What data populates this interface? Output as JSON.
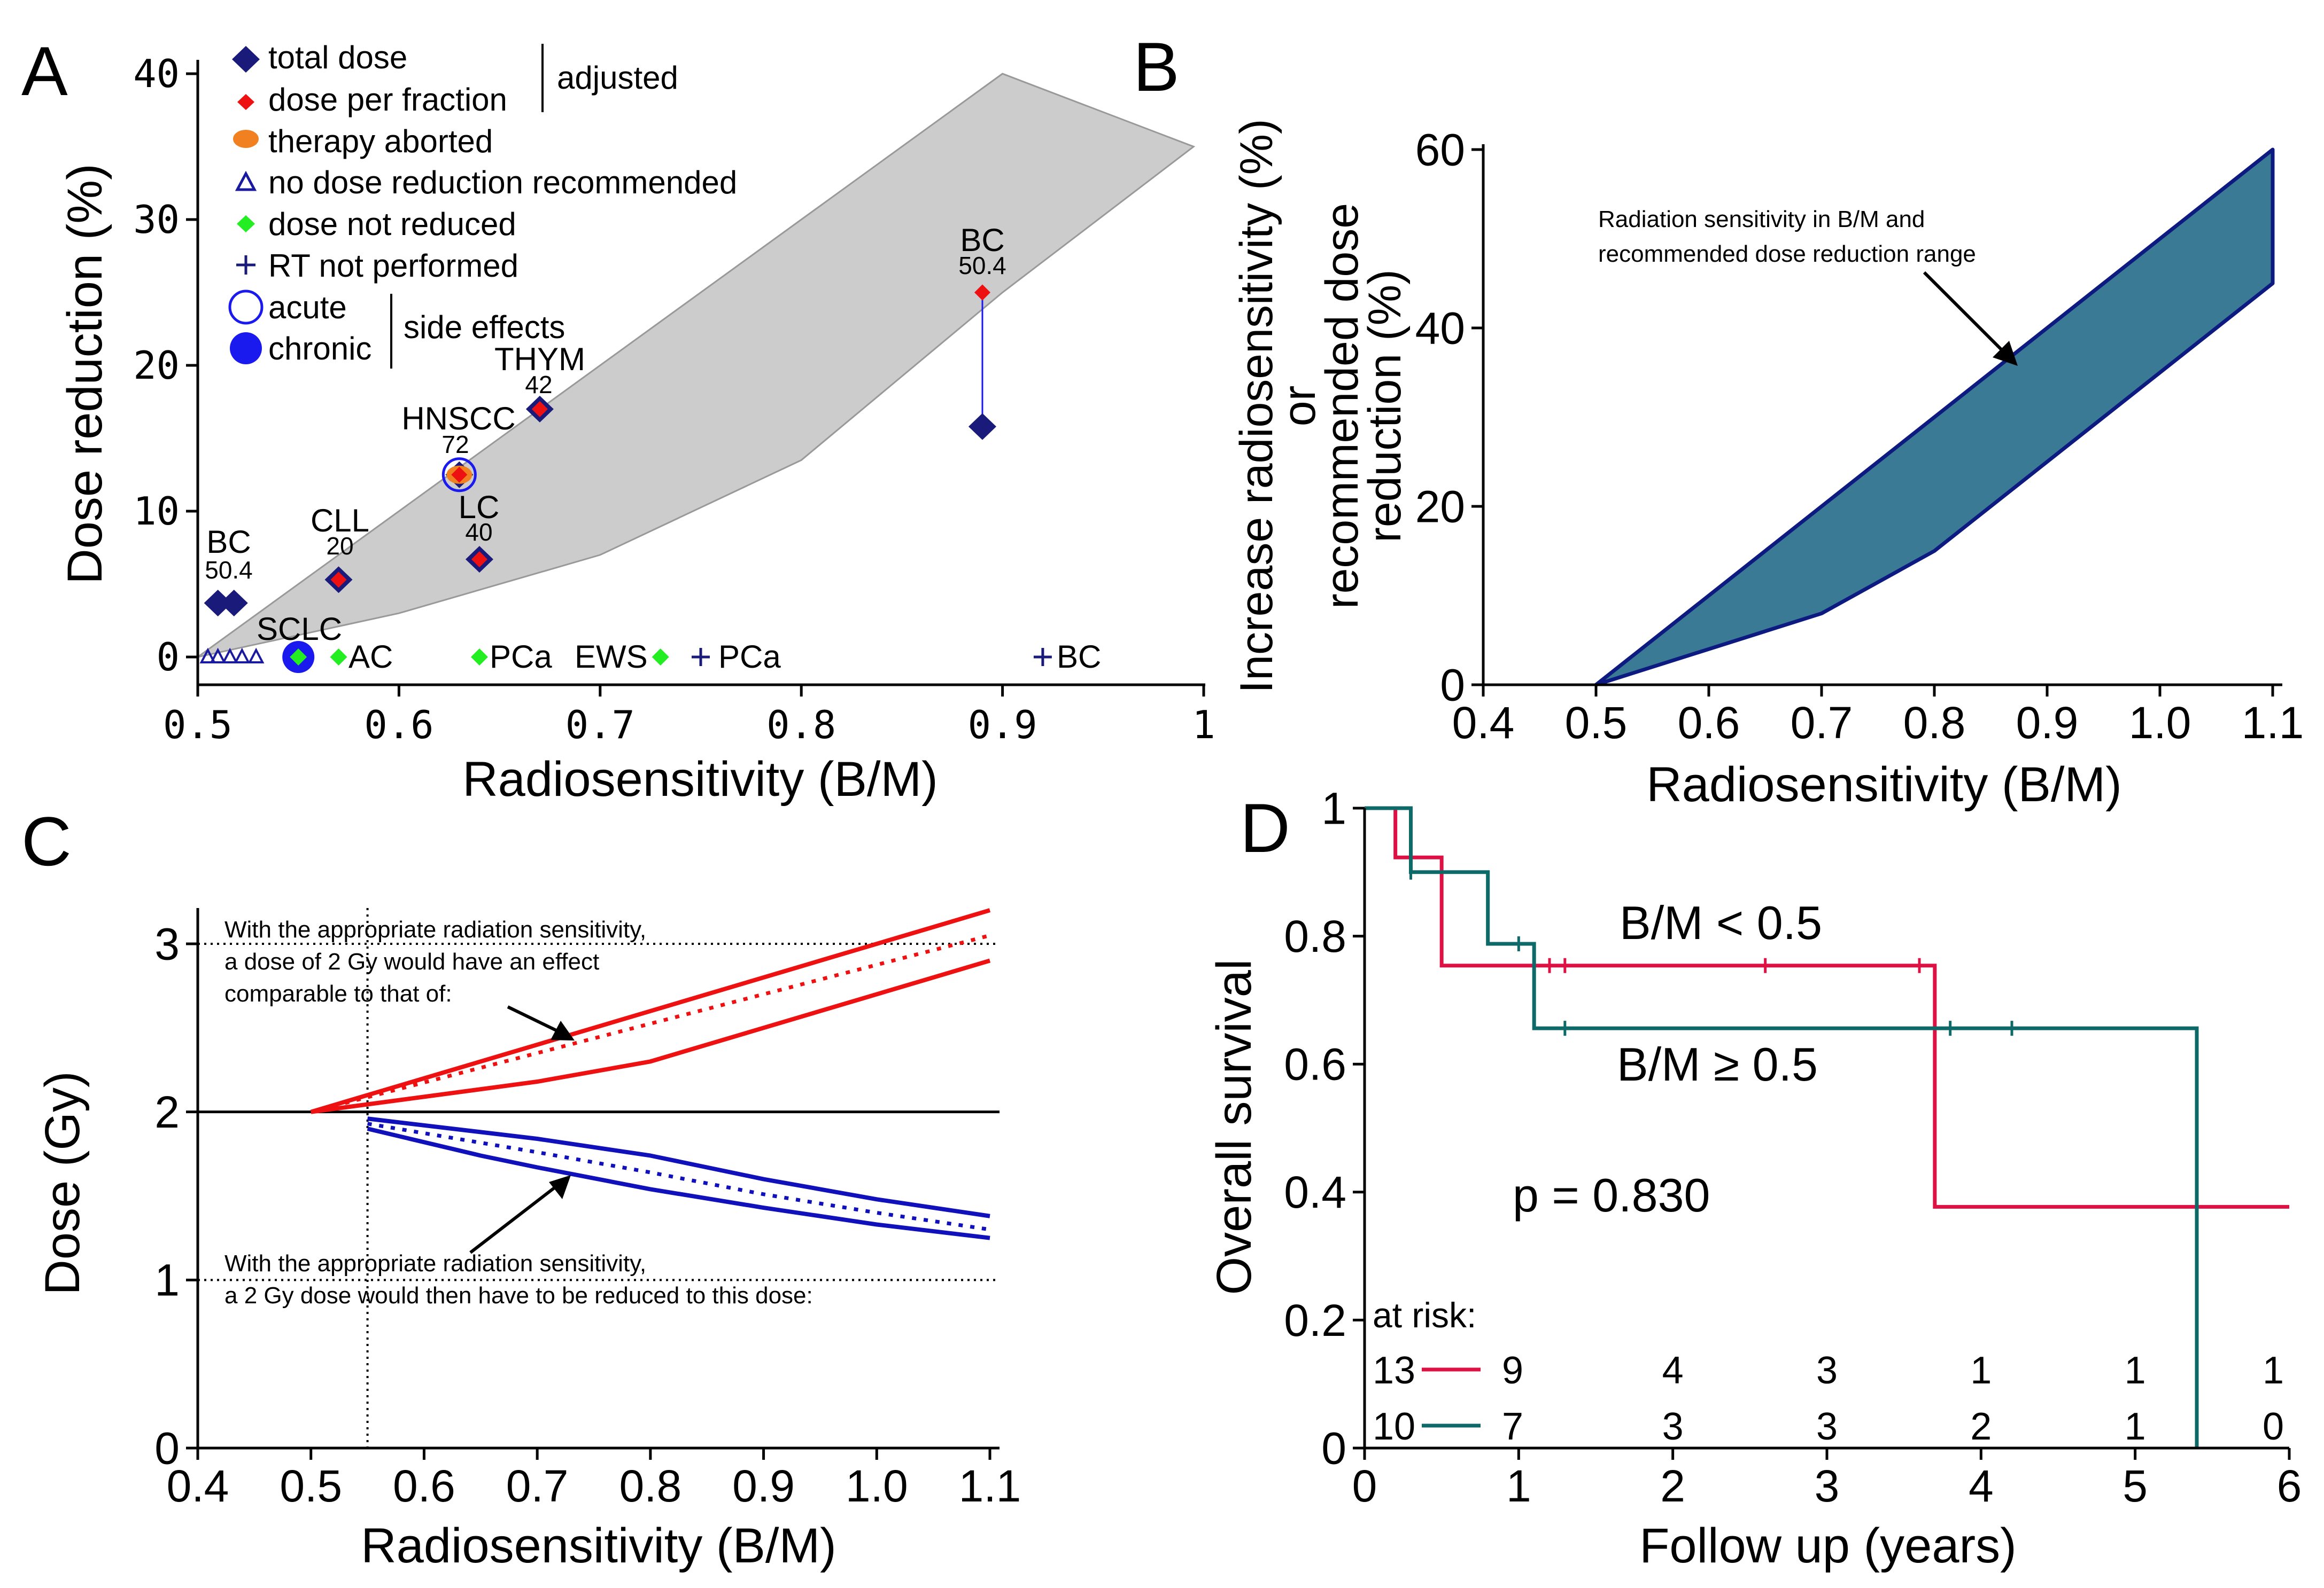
{
  "panels": {
    "A": {
      "letter": "A",
      "chart_data": {
        "type": "scatter",
        "xlabel": "Radiosensitivity (B/M)",
        "ylabel": "Dose reduction (%)",
        "xlim": [
          0.5,
          1.0
        ],
        "ylim": [
          0,
          40
        ],
        "xtick_labels": [
          "0.5",
          "0.6",
          "0.7",
          "0.8",
          "0.9",
          "1"
        ],
        "xticks": [
          0.5,
          0.6,
          0.7,
          0.8,
          0.9,
          1.0
        ],
        "ytick_labels": [
          "0",
          "10",
          "20",
          "30",
          "40"
        ],
        "yticks": [
          0,
          10,
          20,
          30,
          40
        ],
        "band_upper": [
          [
            0.5,
            0
          ],
          [
            0.9,
            40
          ],
          [
            0.995,
            35
          ]
        ],
        "band_lower": [
          [
            0.5,
            0
          ],
          [
            0.6,
            3
          ],
          [
            0.7,
            7
          ],
          [
            0.8,
            13.5
          ],
          [
            0.9,
            25
          ],
          [
            0.995,
            35
          ]
        ],
        "legend": {
          "items": [
            {
              "label": "total dose",
              "marker": "diamond-navy"
            },
            {
              "label": "dose per fraction",
              "marker": "diamond-red"
            },
            {
              "label": "therapy aborted",
              "marker": "ellipse-orange"
            },
            {
              "label": "no dose reduction recommended",
              "marker": "triangle-open"
            },
            {
              "label": "dose not reduced",
              "marker": "diamond-green"
            },
            {
              "label": "RT not performed",
              "marker": "plus-navy"
            },
            {
              "label": "acute",
              "marker": "circle-open"
            },
            {
              "label": "chronic",
              "marker": "circle-filled"
            }
          ],
          "group_adjusted": "adjusted",
          "group_side_effects": "side effects"
        },
        "points": {
          "total_dose": [
            [
              0.51,
              3.7
            ],
            [
              0.518,
              3.7
            ],
            [
              0.57,
              5.3
            ],
            [
              0.63,
              12.5
            ],
            [
              0.64,
              6.7
            ],
            [
              0.67,
              17
            ],
            [
              0.89,
              15.8
            ]
          ],
          "dose_per_fraction": [
            [
              0.57,
              5.3
            ],
            [
              0.63,
              12.5
            ],
            [
              0.64,
              6.7
            ],
            [
              0.67,
              17
            ],
            [
              0.89,
              25
            ]
          ],
          "therapy_aborted": [
            [
              0.63,
              12.5
            ]
          ],
          "no_dose_reduction": [
            [
              0.505,
              0
            ],
            [
              0.51,
              0
            ],
            [
              0.516,
              0
            ],
            [
              0.522,
              0
            ],
            [
              0.529,
              0
            ]
          ],
          "dose_not_reduced": [
            [
              0.55,
              0
            ],
            [
              0.57,
              0
            ],
            [
              0.64,
              0
            ],
            [
              0.73,
              0
            ]
          ],
          "rt_not_performed": [
            [
              0.75,
              0
            ],
            [
              0.92,
              0
            ]
          ],
          "acute": [
            [
              0.63,
              12.5
            ]
          ],
          "chronic": [
            [
              0.55,
              0
            ]
          ]
        },
        "annotations": [
          {
            "name": "BC",
            "dose": "50.4",
            "x": 0.515,
            "y": 3.7
          },
          {
            "name": "CLL",
            "dose": "20",
            "x": 0.57,
            "y": 5.3
          },
          {
            "name": "HNSCC",
            "dose": "72",
            "x": 0.63,
            "y": 12.5
          },
          {
            "name": "LC",
            "dose": "40",
            "x": 0.64,
            "y": 6.7
          },
          {
            "name": "THYM",
            "dose": "42",
            "x": 0.67,
            "y": 17
          },
          {
            "name": "BC",
            "dose": "50.4",
            "x": 0.89,
            "y": 25
          }
        ],
        "baseline_labels": [
          "SCLC",
          "AC",
          "PCa",
          "EWS",
          "PCa",
          "BC"
        ]
      }
    },
    "B": {
      "letter": "B",
      "chart_data": {
        "type": "area",
        "xlabel": "Radiosensitivity (B/M)",
        "ylabel_lines": [
          "Increase radiosensitivity (%)",
          "or",
          "recommended dose",
          "reduction (%)"
        ],
        "xlim": [
          0.4,
          1.1
        ],
        "ylim": [
          0,
          60
        ],
        "xtick_labels": [
          "0.4",
          "0.5",
          "0.6",
          "0.7",
          "0.8",
          "0.9",
          "1.0",
          "1.1"
        ],
        "xticks": [
          0.4,
          0.5,
          0.6,
          0.7,
          0.8,
          0.9,
          1.0,
          1.1
        ],
        "ytick_labels": [
          "0",
          "20",
          "40",
          "60"
        ],
        "yticks": [
          0,
          20,
          40,
          60
        ],
        "upper": [
          [
            0.5,
            0
          ],
          [
            1.1,
            60
          ]
        ],
        "lower": [
          [
            0.5,
            0
          ],
          [
            0.7,
            8
          ],
          [
            0.8,
            15
          ],
          [
            1.1,
            45
          ]
        ],
        "fill_color": "#3a7a95",
        "edge_color": "#0d1a80",
        "annotation_lines": [
          "Radiation sensitivity in B/M and",
          "recommended dose reduction range"
        ]
      }
    },
    "C": {
      "letter": "C",
      "chart_data": {
        "type": "line",
        "xlabel": "Radiosensitivity (B/M)",
        "ylabel": "Dose (Gy)",
        "xlim": [
          0.4,
          1.1
        ],
        "ylim": [
          0,
          3.2
        ],
        "xtick_labels": [
          "0.4",
          "0.5",
          "0.6",
          "0.7",
          "0.8",
          "0.9",
          "1.0",
          "1.1"
        ],
        "xticks": [
          0.4,
          0.5,
          0.6,
          0.7,
          0.8,
          0.9,
          1.0,
          1.1
        ],
        "ytick_labels": [
          "0",
          "1",
          "2",
          "3"
        ],
        "yticks": [
          0,
          1,
          2,
          3
        ],
        "reference_lines": {
          "y_solid": 2,
          "y_dotted": [
            1,
            3
          ],
          "x_dotted": 0.55
        },
        "series": [
          {
            "name": "red upper",
            "color": "#ee1111",
            "style": "solid",
            "points": [
              [
                0.5,
                2.0
              ],
              [
                1.1,
                3.2
              ]
            ]
          },
          {
            "name": "red mid",
            "color": "#ee1111",
            "style": "dotted",
            "points": [
              [
                0.5,
                2.0
              ],
              [
                1.1,
                3.05
              ]
            ]
          },
          {
            "name": "red lower",
            "color": "#ee1111",
            "style": "solid",
            "points": [
              [
                0.5,
                2.0
              ],
              [
                0.7,
                2.18
              ],
              [
                0.8,
                2.3
              ],
              [
                1.1,
                2.9
              ]
            ]
          },
          {
            "name": "blue upper",
            "color": "#1111bb",
            "style": "solid",
            "points": [
              [
                0.55,
                1.96
              ],
              [
                0.7,
                1.84
              ],
              [
                0.8,
                1.74
              ],
              [
                0.9,
                1.6
              ],
              [
                1.0,
                1.48
              ],
              [
                1.1,
                1.38
              ]
            ]
          },
          {
            "name": "blue mid",
            "color": "#1111bb",
            "style": "dotted",
            "points": [
              [
                0.55,
                1.93
              ],
              [
                0.7,
                1.76
              ],
              [
                0.8,
                1.64
              ],
              [
                0.9,
                1.51
              ],
              [
                1.0,
                1.4
              ],
              [
                1.1,
                1.3
              ]
            ]
          },
          {
            "name": "blue lower",
            "color": "#1111bb",
            "style": "solid",
            "points": [
              [
                0.55,
                1.9
              ],
              [
                0.65,
                1.74
              ],
              [
                0.7,
                1.67
              ],
              [
                0.8,
                1.54
              ],
              [
                0.9,
                1.43
              ],
              [
                1.0,
                1.33
              ],
              [
                1.1,
                1.25
              ]
            ]
          }
        ],
        "note_upper": [
          "With the appropriate radiation sensitivity,",
          "a dose of 2 Gy would have an effect",
          "comparable to that of:"
        ],
        "note_lower": [
          "With the appropriate radiation sensitivity,",
          "a 2 Gy dose would then have to be reduced to this dose:"
        ]
      }
    },
    "D": {
      "letter": "D",
      "chart_data": {
        "type": "line",
        "xlabel": "Follow up (years)",
        "ylabel": "Overall survival",
        "xlim": [
          0,
          6
        ],
        "ylim": [
          0,
          1
        ],
        "xtick_labels": [
          "0",
          "1",
          "2",
          "3",
          "4",
          "5",
          "6"
        ],
        "xticks": [
          0,
          1,
          2,
          3,
          4,
          5,
          6
        ],
        "ytick_labels": [
          "0",
          "0.2",
          "0.4",
          "0.6",
          "0.8",
          "1"
        ],
        "yticks": [
          0,
          0.2,
          0.4,
          0.6,
          0.8,
          1.0
        ],
        "series": [
          {
            "name": "B/M < 0.5",
            "color": "#dd1144",
            "steps": [
              [
                0,
                1.0
              ],
              [
                0.2,
                0.923
              ],
              [
                0.5,
                0.754
              ],
              [
                3.7,
                0.377
              ],
              [
                6,
                0.377
              ]
            ],
            "censors": [
              [
                1.2,
                0.754
              ],
              [
                1.3,
                0.754
              ],
              [
                2.6,
                0.754
              ],
              [
                3.6,
                0.754
              ]
            ]
          },
          {
            "name": "B/M ≥ 0.5",
            "color": "#0e6a68",
            "steps": [
              [
                0,
                1.0
              ],
              [
                0.3,
                0.9
              ],
              [
                0.8,
                0.788
              ],
              [
                1.1,
                0.656
              ],
              [
                5.4,
                0.0
              ]
            ],
            "censors": [
              [
                0.3,
                0.9
              ],
              [
                1.0,
                0.788
              ],
              [
                1.3,
                0.656
              ],
              [
                3.8,
                0.656
              ],
              [
                4.2,
                0.656
              ]
            ]
          }
        ],
        "p_value_label": "p = 0.830",
        "at_risk_label": "at risk:",
        "at_risk": [
          {
            "start": "13",
            "counts": [
              "9",
              "4",
              "3",
              "1",
              "1",
              "1"
            ]
          },
          {
            "start": "10",
            "counts": [
              "7",
              "3",
              "3",
              "2",
              "1",
              "0"
            ]
          }
        ]
      }
    }
  }
}
